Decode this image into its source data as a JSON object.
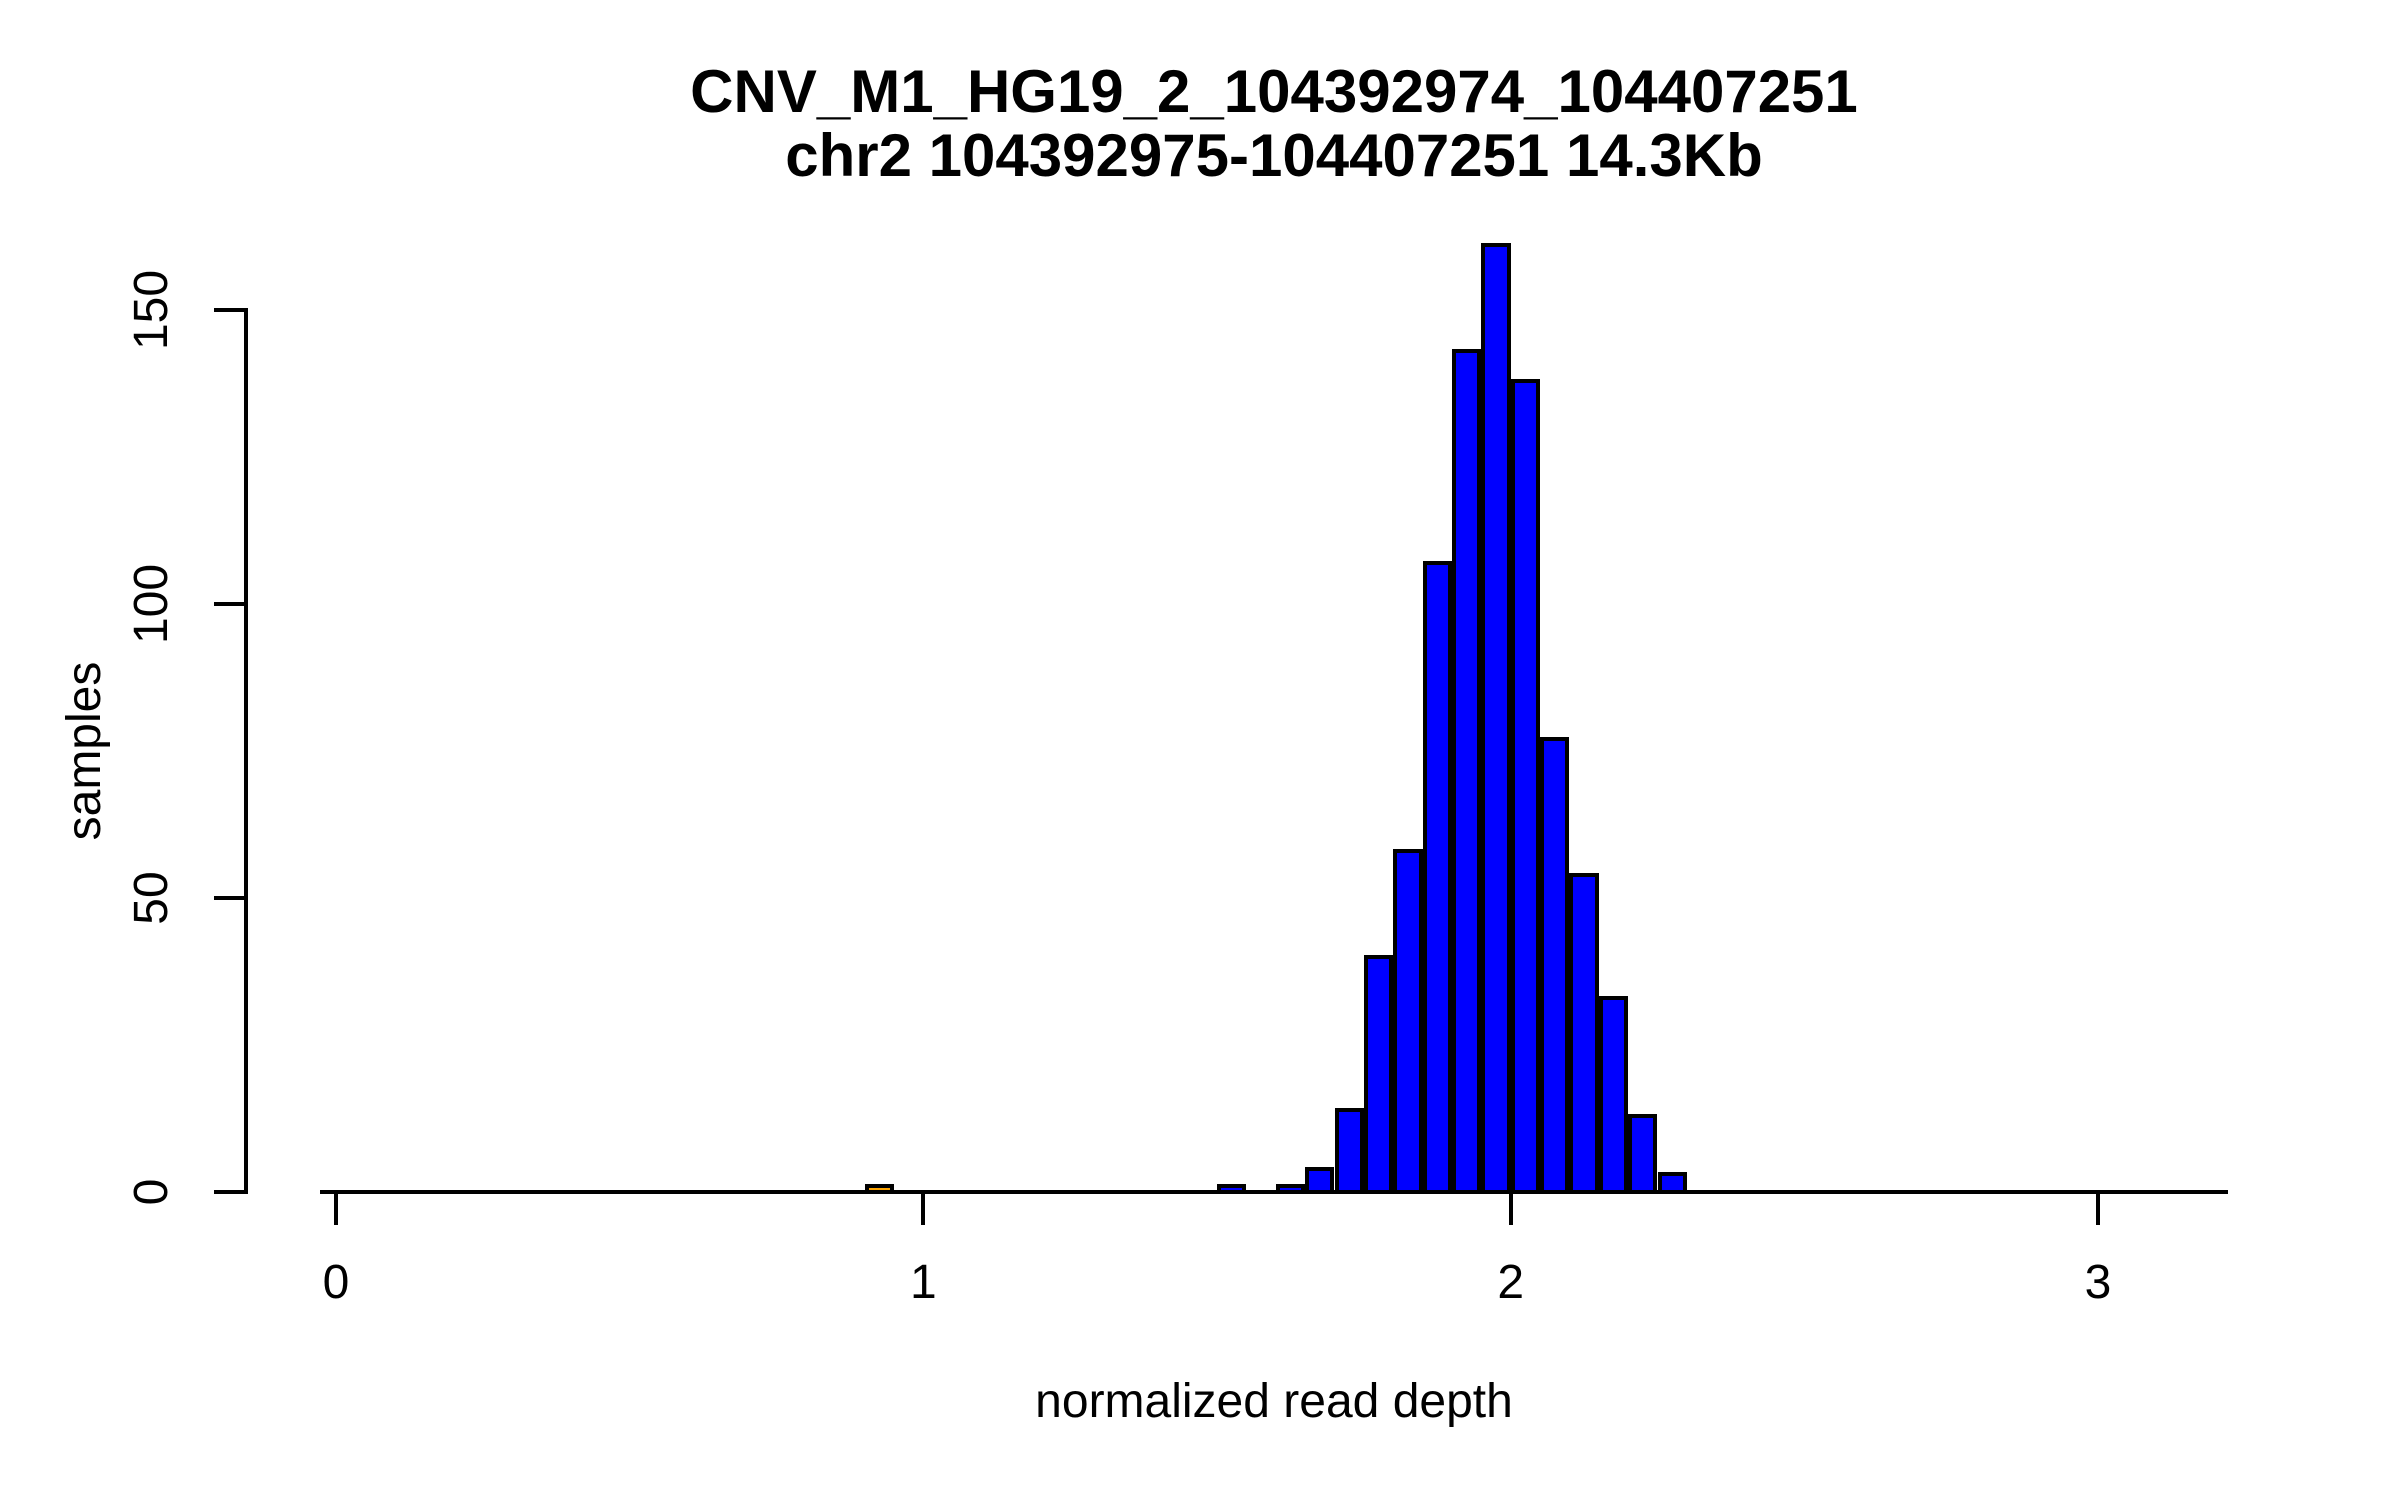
{
  "title": {
    "line1": "CNV_M1_HG19_2_104392974_104407251",
    "line2": "chr2 104392975-104407251 14.3Kb"
  },
  "chart_data": {
    "type": "bar",
    "subtype": "histogram",
    "title": "CNV_M1_HG19_2_104392974_104407251",
    "subtitle": "chr2 104392975-104407251 14.3Kb",
    "xlabel": "normalized read depth",
    "ylabel": "samples",
    "x_ticks": [
      0,
      1,
      2,
      3
    ],
    "y_ticks": [
      0,
      50,
      100,
      150
    ],
    "xlim": [
      -0.03,
      3.22
    ],
    "ylim": [
      0,
      161
    ],
    "bin_width": 0.05,
    "grid": "off",
    "legend": "none",
    "colors": {
      "bar_fill": "#0000FF",
      "outlier_fill": "#FFA500",
      "bar_border": "#000000",
      "axis": "#000000",
      "background": "#FFFFFF"
    },
    "bins": [
      {
        "x0": 0.9,
        "x1": 0.95,
        "count": 1,
        "color": "#FFA500"
      },
      {
        "x0": 1.5,
        "x1": 1.55,
        "count": 1,
        "color": "#0000FF"
      },
      {
        "x0": 1.6,
        "x1": 1.65,
        "count": 1,
        "color": "#0000FF"
      },
      {
        "x0": 1.65,
        "x1": 1.7,
        "count": 4,
        "color": "#0000FF"
      },
      {
        "x0": 1.7,
        "x1": 1.75,
        "count": 14,
        "color": "#0000FF"
      },
      {
        "x0": 1.75,
        "x1": 1.8,
        "count": 40,
        "color": "#0000FF"
      },
      {
        "x0": 1.8,
        "x1": 1.85,
        "count": 58,
        "color": "#0000FF"
      },
      {
        "x0": 1.85,
        "x1": 1.9,
        "count": 107,
        "color": "#0000FF"
      },
      {
        "x0": 1.9,
        "x1": 1.95,
        "count": 143,
        "color": "#0000FF"
      },
      {
        "x0": 1.95,
        "x1": 2.0,
        "count": 161,
        "color": "#0000FF"
      },
      {
        "x0": 2.0,
        "x1": 2.05,
        "count": 138,
        "color": "#0000FF"
      },
      {
        "x0": 2.05,
        "x1": 2.1,
        "count": 77,
        "color": "#0000FF"
      },
      {
        "x0": 2.1,
        "x1": 2.15,
        "count": 54,
        "color": "#0000FF"
      },
      {
        "x0": 2.15,
        "x1": 2.2,
        "count": 33,
        "color": "#0000FF"
      },
      {
        "x0": 2.2,
        "x1": 2.25,
        "count": 13,
        "color": "#0000FF"
      },
      {
        "x0": 2.25,
        "x1": 2.3,
        "count": 3,
        "color": "#0000FF"
      }
    ]
  }
}
